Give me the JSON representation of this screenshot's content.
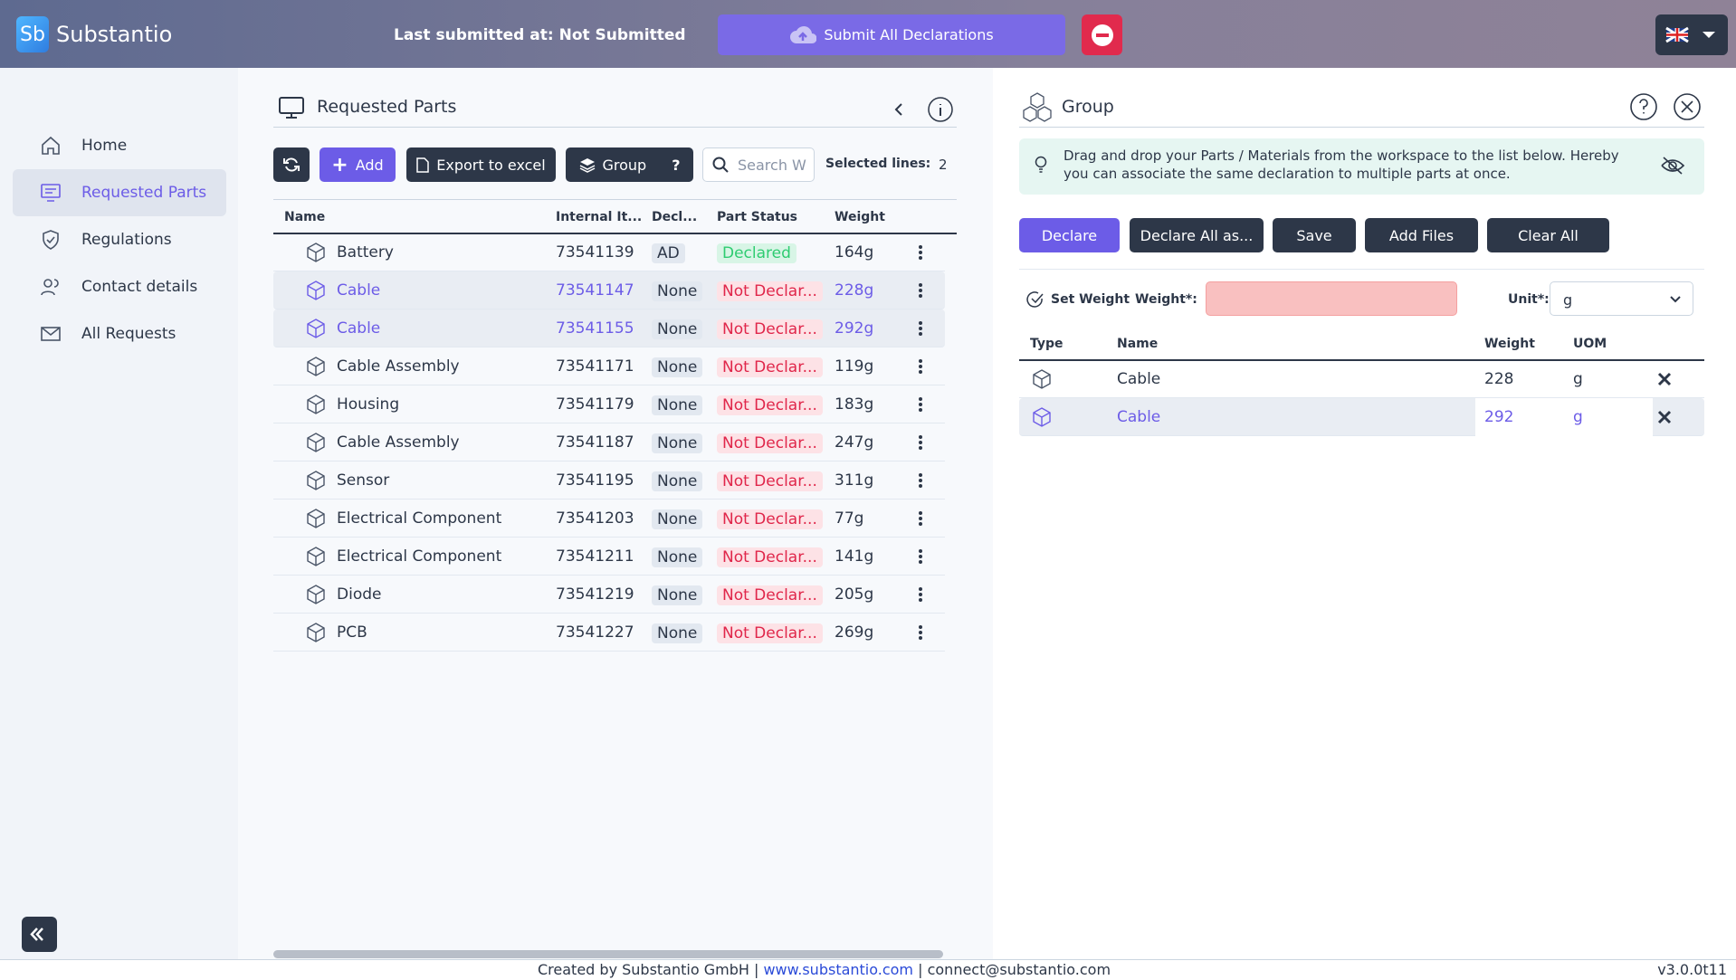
{
  "header": {
    "logo": "Sb",
    "brand": "Substantio",
    "last_submitted_label": "Last submitted at:",
    "last_submitted_value": "Not Submitted",
    "submit_button": "Submit All Declarations"
  },
  "sidebar": {
    "items": [
      "Home",
      "Requested Parts",
      "Regulations",
      "Contact details",
      "All Requests"
    ]
  },
  "parts_panel": {
    "title": "Requested Parts",
    "buttons": {
      "add": "Add",
      "export": "Export to excel",
      "group": "Group"
    },
    "search_placeholder": "Search W",
    "selected_label": "Selected lines:",
    "selected_count": "2",
    "columns": [
      "Name",
      "Internal It...",
      "Decl...",
      "Part Status",
      "Weight"
    ],
    "rows": [
      [
        "Battery",
        "73541139",
        "AD",
        "Declared",
        "164g"
      ],
      [
        "Cable",
        "73541147",
        "None",
        "Not Declar...",
        "228g"
      ],
      [
        "Cable",
        "73541155",
        "None",
        "Not Declar...",
        "292g"
      ],
      [
        "Cable Assembly",
        "73541171",
        "None",
        "Not Declar...",
        "119g"
      ],
      [
        "Housing",
        "73541179",
        "None",
        "Not Declar...",
        "183g"
      ],
      [
        "Cable Assembly",
        "73541187",
        "None",
        "Not Declar...",
        "247g"
      ],
      [
        "Sensor",
        "73541195",
        "None",
        "Not Declar...",
        "311g"
      ],
      [
        "Electrical Component",
        "73541203",
        "None",
        "Not Declar...",
        "77g"
      ],
      [
        "Electrical Component",
        "73541211",
        "None",
        "Not Declar...",
        "141g"
      ],
      [
        "Diode",
        "73541219",
        "None",
        "Not Declar...",
        "205g"
      ],
      [
        "PCB",
        "73541227",
        "None",
        "Not Declar...",
        "269g"
      ]
    ]
  },
  "group_panel": {
    "title": "Group",
    "info": "Drag and drop your Parts / Materials from the workspace to the list below. Hereby you can associate the same declaration to multiple parts at once.",
    "buttons": [
      "Declare",
      "Declare All as...",
      "Save",
      "Add Files",
      "Clear All"
    ],
    "set_weight": "Set Weight",
    "weight_label": "Weight*:",
    "unit_label": "Unit*:",
    "unit_value": "g",
    "columns": [
      "Type",
      "Name",
      "Weight",
      "UOM"
    ],
    "rows": [
      [
        "Cable",
        "228",
        "g"
      ],
      [
        "Cable",
        "292",
        "g"
      ]
    ]
  },
  "footer": {
    "created": "Created by Substantio GmbH |",
    "link": "www.substantio.com",
    "contact": "| connect@substantio.com",
    "version": "v3.0.0t11"
  }
}
